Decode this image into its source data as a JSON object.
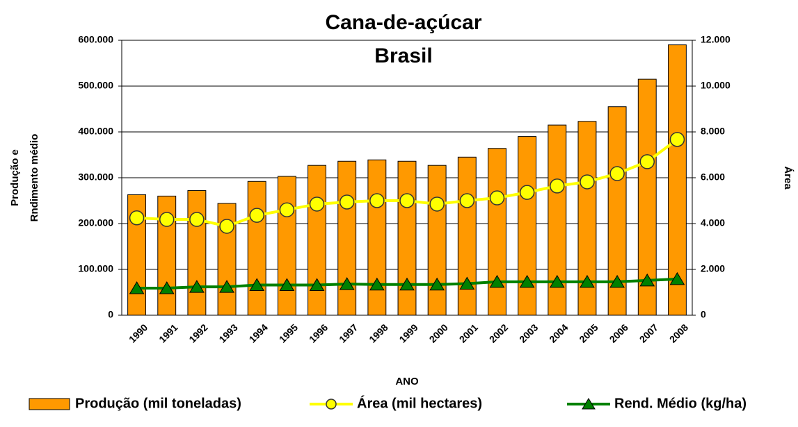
{
  "chart_data": {
    "type": "bar",
    "title": "Cana-de-açúcar",
    "subtitle": "Brasil",
    "xlabel": "ANO",
    "ylabel": [
      "Produção e",
      "Rndimento médio"
    ],
    "y2label": "Área",
    "categories": [
      "1990",
      "1991",
      "1992",
      "1993",
      "1994",
      "1995",
      "1996",
      "1997",
      "1998",
      "1999",
      "2000",
      "2001",
      "2002",
      "2003",
      "2004",
      "2005",
      "2006",
      "2007",
      "2008"
    ],
    "series": [
      {
        "name": "Produção (mil toneladas)",
        "type": "bar",
        "color": "#ff9900",
        "values": [
          263000,
          260000,
          272000,
          244000,
          292000,
          303000,
          327000,
          336000,
          339000,
          336000,
          327000,
          345000,
          364000,
          390000,
          415000,
          423000,
          455000,
          515000,
          590000
        ]
      },
      {
        "name": "Área (mil hectares)",
        "type": "line",
        "axis": "y2",
        "color": "#ffff00",
        "marker": "circle",
        "values": [
          4250,
          4180,
          4180,
          3880,
          4360,
          4600,
          4850,
          4940,
          5000,
          5000,
          4850,
          5000,
          5120,
          5360,
          5640,
          5820,
          6180,
          6700,
          7670
        ]
      },
      {
        "name": "Rend. Médio (kg/ha)",
        "type": "line",
        "color": "#008000",
        "marker": "triangle",
        "values": [
          59000,
          59000,
          62000,
          62000,
          66000,
          66000,
          66000,
          68000,
          67000,
          67000,
          67000,
          69000,
          73000,
          73000,
          73000,
          73000,
          73000,
          76000,
          79000
        ]
      }
    ],
    "ylim": [
      0,
      600000
    ],
    "yticks": [
      0,
      {
        "value": 100000,
        "label": "100.000"
      },
      {
        "value": 200000,
        "label": "200.000"
      },
      {
        "value": 300000,
        "label": "300.000"
      },
      {
        "value": 400000,
        "label": "400.000"
      },
      {
        "value": 500000,
        "label": "500.000"
      },
      {
        "value": 600000,
        "label": "600.000"
      }
    ],
    "y2lim": [
      0,
      12000
    ],
    "y2ticks": [
      0,
      {
        "value": 2000,
        "label": "2.000"
      },
      {
        "value": 4000,
        "label": "4.000"
      },
      {
        "value": 6000,
        "label": "6.000"
      },
      {
        "value": 8000,
        "label": "8.000"
      },
      {
        "value": 10000,
        "label": "10.000"
      },
      {
        "value": 12000,
        "label": "12.000"
      }
    ],
    "grid": true,
    "legend": "bottom"
  }
}
